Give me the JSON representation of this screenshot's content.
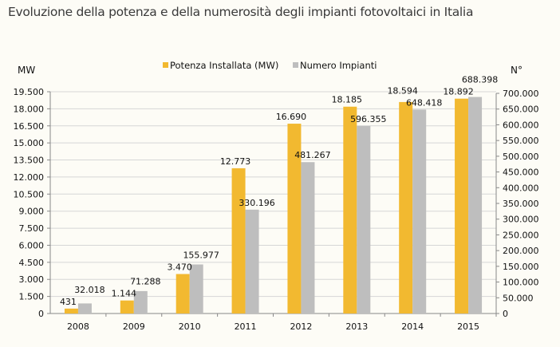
{
  "chart_data": {
    "type": "bar",
    "title": "Evoluzione della potenza e della numerosità degli impianti fotovoltaici in Italia",
    "categories": [
      "2008",
      "2009",
      "2010",
      "2011",
      "2012",
      "2013",
      "2014",
      "2015"
    ],
    "series": [
      {
        "name": "Potenza Installata (MW)",
        "axis": "left",
        "color": "#f2b930",
        "values": [
          431,
          1144,
          3470,
          12773,
          16690,
          18185,
          18594,
          18892
        ],
        "labels": [
          "431",
          "1.144",
          "3.470",
          "12.773",
          "16.690",
          "18.185",
          "18.594",
          "18.892"
        ]
      },
      {
        "name": "Numero Impianti",
        "axis": "right",
        "color": "#bebebe",
        "values": [
          32018,
          71288,
          155977,
          330196,
          481267,
          596355,
          648418,
          688398
        ],
        "labels": [
          "32.018",
          "71.288",
          "155.977",
          "330.196",
          "481.267",
          "596.355",
          "648.418",
          "688.398"
        ]
      }
    ],
    "ylabel_left": "MW",
    "ylabel_right": "N°",
    "ylim_left": [
      0,
      19500
    ],
    "ylim_right": [
      0,
      700000
    ],
    "yticks_left": [
      "0",
      "1.500",
      "3.000",
      "4.500",
      "6.000",
      "7.500",
      "9.000",
      "10.500",
      "12.000",
      "13.500",
      "15.000",
      "16.500",
      "18.000",
      "19.500"
    ],
    "yticks_right": [
      "0",
      "50.000",
      "100.000",
      "150.000",
      "200.000",
      "250.000",
      "300.000",
      "350.000",
      "400.000",
      "450.000",
      "500.000",
      "550.000",
      "600.000",
      "650.000",
      "700.000"
    ],
    "grid": true,
    "legend": "top-center"
  }
}
